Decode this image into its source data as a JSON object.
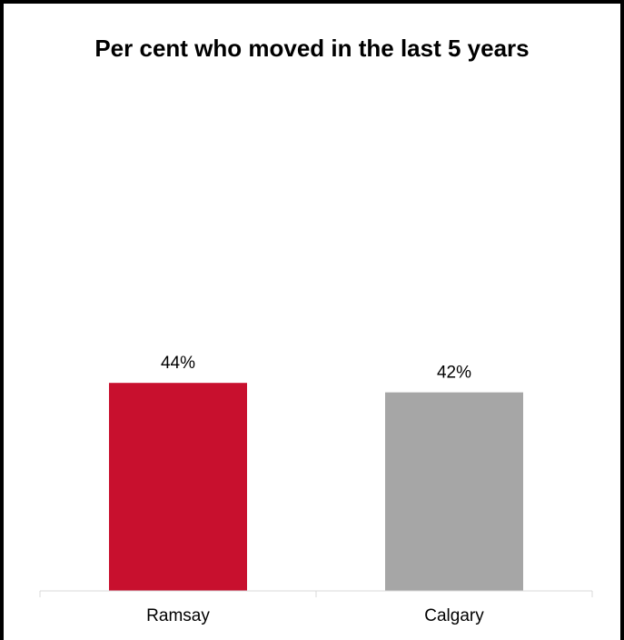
{
  "chart_data": {
    "type": "bar",
    "title": "Per cent who moved in the last 5 years",
    "categories": [
      "Ramsay",
      "Calgary"
    ],
    "values": [
      44,
      42
    ],
    "value_suffix": "%",
    "colors": [
      "#c8102e",
      "#a6a6a6"
    ],
    "ylim": [
      0,
      100
    ],
    "xlabel": "",
    "ylabel": "",
    "grid": false,
    "legend": "none"
  }
}
